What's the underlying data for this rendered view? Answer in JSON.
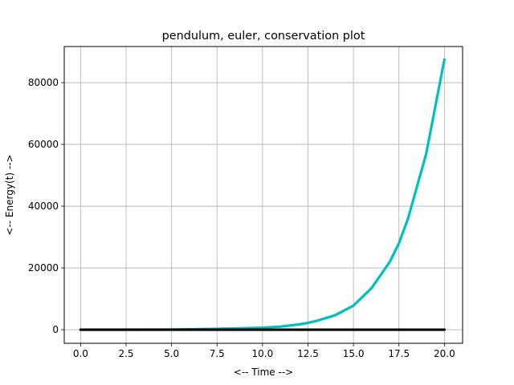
{
  "chart_data": {
    "type": "line",
    "title": "pendulum, euler, conservation plot",
    "xlabel": "<-- Time -->",
    "ylabel": "<-- Energy(t) -->",
    "xlim": [
      -0.9,
      21.0
    ],
    "ylim": [
      -4400,
      91700
    ],
    "xticks": [
      0.0,
      2.5,
      5.0,
      7.5,
      10.0,
      12.5,
      15.0,
      17.5,
      20.0
    ],
    "xtick_labels": [
      "0.0",
      "2.5",
      "5.0",
      "7.5",
      "10.0",
      "12.5",
      "15.0",
      "17.5",
      "20.0"
    ],
    "yticks": [
      0,
      20000,
      40000,
      60000,
      80000
    ],
    "ytick_labels": [
      "0",
      "20000",
      "40000",
      "60000",
      "80000"
    ],
    "grid": true,
    "legend": "none",
    "series": [
      {
        "color": "#00bfbf",
        "x": [
          0,
          1,
          2,
          3,
          4,
          5,
          6,
          7,
          8,
          9,
          10,
          11,
          12,
          12.5,
          13,
          14,
          15,
          16,
          17,
          17.5,
          18,
          19,
          20
        ],
        "y": [
          1,
          2,
          5,
          12,
          30,
          65,
          130,
          230,
          340,
          470,
          650,
          1000,
          1700,
          2200,
          2900,
          4700,
          7800,
          13500,
          22000,
          28000,
          36000,
          57000,
          87500
        ]
      },
      {
        "color": "#000000",
        "x": [
          0,
          20
        ],
        "y": [
          0,
          0
        ]
      }
    ]
  }
}
